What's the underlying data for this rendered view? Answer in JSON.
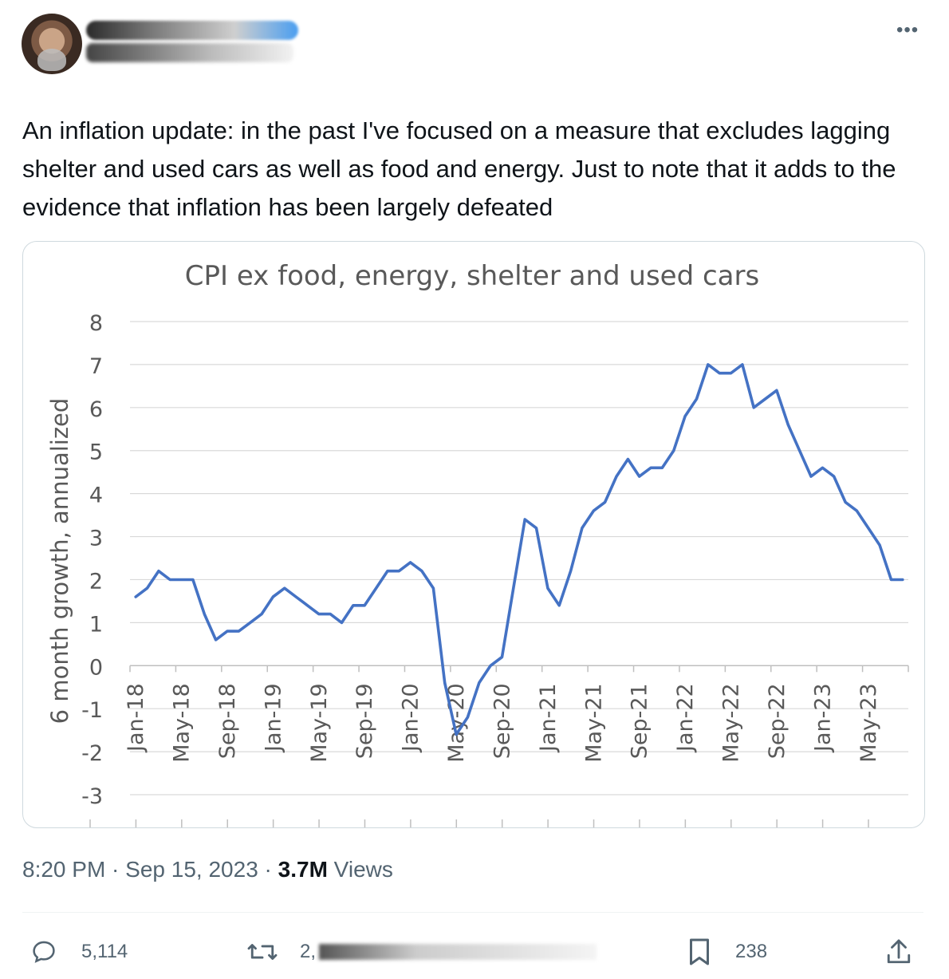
{
  "more_label": "•••",
  "tweet": {
    "text": "An inflation update: in the past I've focused on a measure that excludes lagging shelter and used cars as well as food and energy. Just to note that it adds to the evidence that inflation has been largely defeated"
  },
  "meta": {
    "time": "8:20 PM",
    "sep1": " · ",
    "date": "Sep 15, 2023",
    "sep2": " · ",
    "views_count": "3.7M",
    "views_label": " Views"
  },
  "actions": {
    "replies": "5,114",
    "retweets_visible": "2,",
    "bookmarks": "238"
  },
  "icons": {
    "reply": "speech-bubble-icon",
    "retweet": "retweet-arrows-icon",
    "bookmark": "bookmark-icon",
    "share": "share-upload-icon"
  },
  "colors": {
    "line": "#4472c4",
    "grid": "#d9d9d9",
    "axis_text": "#595959",
    "secondary_text": "#536471"
  },
  "chart_data": {
    "type": "line",
    "title": "CPI ex food, energy, shelter and used cars",
    "ylabel": "6 month growth, annualized",
    "xlabel": "",
    "ylim": [
      -3,
      8
    ],
    "yticks": [
      8,
      7,
      6,
      5,
      4,
      3,
      2,
      1,
      0,
      -1,
      -2,
      -3
    ],
    "grid": true,
    "x_tick_labels": [
      "Jan-18",
      "May-18",
      "Sep-18",
      "Jan-19",
      "May-19",
      "Sep-19",
      "Jan-20",
      "May-20",
      "Sep-20",
      "Jan-21",
      "May-21",
      "Sep-21",
      "Jan-22",
      "May-22",
      "Sep-22",
      "Jan-23",
      "May-23"
    ],
    "x": [
      "Jan-18",
      "Feb-18",
      "Mar-18",
      "Apr-18",
      "May-18",
      "Jun-18",
      "Jul-18",
      "Aug-18",
      "Sep-18",
      "Oct-18",
      "Nov-18",
      "Dec-18",
      "Jan-19",
      "Feb-19",
      "Mar-19",
      "Apr-19",
      "May-19",
      "Jun-19",
      "Jul-19",
      "Aug-19",
      "Sep-19",
      "Oct-19",
      "Nov-19",
      "Dec-19",
      "Jan-20",
      "Feb-20",
      "Mar-20",
      "Apr-20",
      "May-20",
      "Jun-20",
      "Jul-20",
      "Aug-20",
      "Sep-20",
      "Oct-20",
      "Nov-20",
      "Dec-20",
      "Jan-21",
      "Feb-21",
      "Mar-21",
      "Apr-21",
      "May-21",
      "Jun-21",
      "Jul-21",
      "Aug-21",
      "Sep-21",
      "Oct-21",
      "Nov-21",
      "Dec-21",
      "Jan-22",
      "Feb-22",
      "Mar-22",
      "Apr-22",
      "May-22",
      "Jun-22",
      "Jul-22",
      "Aug-22",
      "Sep-22",
      "Oct-22",
      "Nov-22",
      "Dec-22",
      "Jan-23",
      "Feb-23",
      "Mar-23",
      "Apr-23",
      "May-23",
      "Jun-23",
      "Jul-23",
      "Aug-23"
    ],
    "series": [
      {
        "values": [
          1.6,
          1.8,
          2.2,
          2.0,
          2.0,
          2.0,
          1.2,
          0.6,
          0.8,
          0.8,
          1.0,
          1.2,
          1.6,
          1.8,
          1.6,
          1.4,
          1.2,
          1.2,
          1.0,
          1.4,
          1.4,
          1.8,
          2.2,
          2.2,
          2.4,
          2.2,
          1.8,
          -0.4,
          -1.6,
          -1.2,
          -0.4,
          0.0,
          0.2,
          1.8,
          3.4,
          3.2,
          1.8,
          1.4,
          2.2,
          3.2,
          3.6,
          3.8,
          4.4,
          4.8,
          4.4,
          4.6,
          4.6,
          5.0,
          5.8,
          6.2,
          7.0,
          6.8,
          6.8,
          7.0,
          6.0,
          6.2,
          6.4,
          5.6,
          5.0,
          4.4,
          4.6,
          4.4,
          3.8,
          3.6,
          3.2,
          2.8,
          2.0,
          2.0
        ]
      }
    ]
  }
}
